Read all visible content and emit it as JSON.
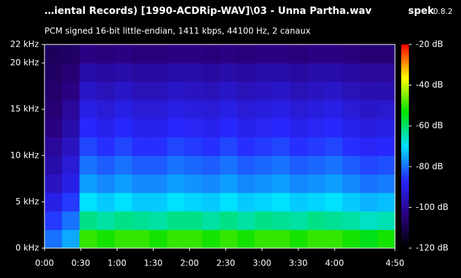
{
  "chart_data": {
    "type": "spectrogram",
    "title": "…iental Records) [1990-ACDRip-WAV]\\03 - Unna Partha.wav",
    "app_name": "spek",
    "app_version": "0.8.2",
    "subtitle": "PCM signed 16-bit little-endian, 1411 kbps, 44100 Hz, 2 canaux",
    "xlim": [
      0,
      290
    ],
    "xticks": [
      {
        "value": 0,
        "label": "0:00"
      },
      {
        "value": 30,
        "label": "0:30"
      },
      {
        "value": 60,
        "label": "1:00"
      },
      {
        "value": 90,
        "label": "1:30"
      },
      {
        "value": 120,
        "label": "2:00"
      },
      {
        "value": 150,
        "label": "2:30"
      },
      {
        "value": 180,
        "label": "3:00"
      },
      {
        "value": 210,
        "label": "3:30"
      },
      {
        "value": 240,
        "label": "4:00"
      },
      {
        "value": 290,
        "label": "4:50"
      }
    ],
    "ylim": [
      0,
      22
    ],
    "yticks": [
      {
        "value": 0,
        "label": "0 kHz"
      },
      {
        "value": 5,
        "label": "5 kHz"
      },
      {
        "value": 10,
        "label": "10 kHz"
      },
      {
        "value": 15,
        "label": "15 kHz"
      },
      {
        "value": 20,
        "label": "20 kHz"
      },
      {
        "value": 22,
        "label": "22 kHz"
      }
    ],
    "zlim": [
      -120,
      -20
    ],
    "zticks": [
      {
        "value": -20,
        "label": "-20 dB"
      },
      {
        "value": -40,
        "label": "-40 dB"
      },
      {
        "value": -60,
        "label": "-60 dB"
      },
      {
        "value": -80,
        "label": "-80 dB"
      },
      {
        "value": -100,
        "label": "-100 dB"
      },
      {
        "value": -120,
        "label": "-120 dB"
      }
    ],
    "colorscale": [
      "#000000",
      "#2a0080",
      "#2828ff",
      "#00e0ff",
      "#00e000",
      "#ffff00",
      "#ff0000"
    ],
    "z": [
      [
        -80,
        -75,
        -50,
        -52,
        -50,
        -50,
        -52,
        -50,
        -50,
        -52,
        -50,
        -52,
        -50,
        -50,
        -52,
        -50,
        -50,
        -52,
        -55,
        -52
      ],
      [
        -85,
        -80,
        -62,
        -64,
        -62,
        -63,
        -64,
        -62,
        -62,
        -64,
        -62,
        -64,
        -62,
        -63,
        -64,
        -62,
        -63,
        -64,
        -66,
        -65
      ],
      [
        -90,
        -85,
        -70,
        -72,
        -70,
        -72,
        -72,
        -70,
        -71,
        -72,
        -70,
        -72,
        -71,
        -70,
        -72,
        -71,
        -70,
        -72,
        -74,
        -73
      ],
      [
        -95,
        -90,
        -76,
        -78,
        -76,
        -78,
        -78,
        -76,
        -77,
        -78,
        -76,
        -78,
        -77,
        -76,
        -78,
        -77,
        -76,
        -78,
        -80,
        -79
      ],
      [
        -98,
        -92,
        -80,
        -82,
        -80,
        -82,
        -82,
        -80,
        -81,
        -82,
        -80,
        -82,
        -81,
        -80,
        -82,
        -81,
        -80,
        -82,
        -84,
        -83
      ],
      [
        -100,
        -95,
        -84,
        -86,
        -84,
        -86,
        -86,
        -84,
        -85,
        -86,
        -84,
        -86,
        -85,
        -84,
        -86,
        -85,
        -84,
        -86,
        -88,
        -87
      ],
      [
        -103,
        -98,
        -87,
        -89,
        -87,
        -89,
        -89,
        -87,
        -88,
        -89,
        -87,
        -89,
        -88,
        -87,
        -89,
        -88,
        -87,
        -89,
        -91,
        -90
      ],
      [
        -105,
        -100,
        -90,
        -92,
        -90,
        -92,
        -92,
        -90,
        -91,
        -92,
        -90,
        -92,
        -91,
        -90,
        -92,
        -91,
        -90,
        -92,
        -94,
        -93
      ],
      [
        -106,
        -103,
        -94,
        -96,
        -94,
        -96,
        -96,
        -94,
        -95,
        -96,
        -94,
        -96,
        -95,
        -94,
        -96,
        -95,
        -94,
        -96,
        -97,
        -97
      ],
      [
        -107,
        -105,
        -98,
        -99,
        -98,
        -99,
        -99,
        -98,
        -98,
        -99,
        -98,
        -99,
        -98,
        -98,
        -99,
        -98,
        -98,
        -99,
        -100,
        -100
      ],
      [
        -108,
        -107,
        -103,
        -104,
        -103,
        -104,
        -104,
        -103,
        -103,
        -104,
        -103,
        -104,
        -103,
        -103,
        -104,
        -103,
        -103,
        -104,
        -105,
        -105
      ]
    ]
  }
}
